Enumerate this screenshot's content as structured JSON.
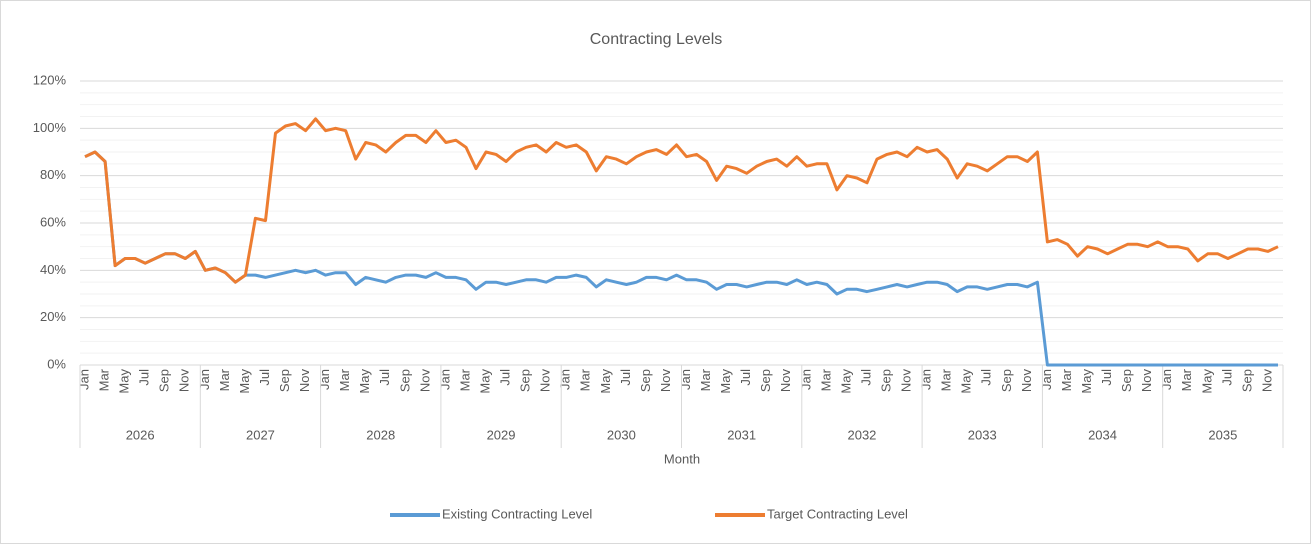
{
  "chart_data": {
    "type": "line",
    "title": "Contracting Levels",
    "x_label": "Month",
    "categories": [
      "Jan",
      null,
      "Mar",
      null,
      "May",
      null,
      "Jul",
      null,
      "Sep",
      null,
      "Nov",
      null,
      "Jan",
      null,
      "Mar",
      null,
      "May",
      null,
      "Jul",
      null,
      "Sep",
      null,
      "Nov",
      null,
      "Jan",
      null,
      "Mar",
      null,
      "May",
      null,
      "Jul",
      null,
      "Sep",
      null,
      "Nov",
      null,
      "Jan",
      null,
      "Mar",
      null,
      "May",
      null,
      "Jul",
      null,
      "Sep",
      null,
      "Nov",
      null,
      "Jan",
      null,
      "Mar",
      null,
      "May",
      null,
      "Jul",
      null,
      "Sep",
      null,
      "Nov",
      null,
      "Jan",
      null,
      "Mar",
      null,
      "May",
      null,
      "Jul",
      null,
      "Sep",
      null,
      "Nov",
      null,
      "Jan",
      null,
      "Mar",
      null,
      "May",
      null,
      "Jul",
      null,
      "Sep",
      null,
      "Nov",
      null,
      "Jan",
      null,
      "Mar",
      null,
      "May",
      null,
      "Jul",
      null,
      "Sep",
      null,
      "Nov",
      null,
      "Jan",
      null,
      "Mar",
      null,
      "May",
      null,
      "Jul",
      null,
      "Sep",
      null,
      "Nov",
      null,
      "Jan",
      null,
      "Mar",
      null,
      "May",
      null,
      "Jul",
      null,
      "Sep",
      null,
      "Nov",
      null
    ],
    "years": [
      "2026",
      "2027",
      "2028",
      "2029",
      "2030",
      "2031",
      "2032",
      "2033",
      "2034",
      "2035"
    ],
    "series": [
      {
        "name": "Existing Contracting Level",
        "color": "#5b9bd5",
        "values": [
          88,
          90,
          86,
          42,
          45,
          45,
          43,
          45,
          47,
          47,
          45,
          48,
          40,
          41,
          39,
          35,
          38,
          38,
          37,
          38,
          39,
          40,
          39,
          40,
          38,
          39,
          39,
          34,
          37,
          36,
          35,
          37,
          38,
          38,
          37,
          39,
          37,
          37,
          36,
          32,
          35,
          35,
          34,
          35,
          36,
          36,
          35,
          37,
          37,
          38,
          37,
          33,
          36,
          35,
          34,
          35,
          37,
          37,
          36,
          38,
          36,
          36,
          35,
          32,
          34,
          34,
          33,
          34,
          35,
          35,
          34,
          36,
          34,
          35,
          34,
          30,
          32,
          32,
          31,
          32,
          33,
          34,
          33,
          34,
          35,
          35,
          34,
          31,
          33,
          33,
          32,
          33,
          34,
          34,
          33,
          35,
          0,
          0,
          0,
          0,
          0,
          0,
          0,
          0,
          0,
          0,
          0,
          0,
          0,
          0,
          0,
          0,
          0,
          0,
          0,
          0,
          0,
          0,
          0,
          0
        ]
      },
      {
        "name": "Target Contracting Level",
        "color": "#ed7d31",
        "values": [
          88,
          90,
          86,
          42,
          45,
          45,
          43,
          45,
          47,
          47,
          45,
          48,
          40,
          41,
          39,
          35,
          38,
          62,
          61,
          98,
          101,
          102,
          99,
          104,
          99,
          100,
          99,
          87,
          94,
          93,
          90,
          94,
          97,
          97,
          94,
          99,
          94,
          95,
          92,
          83,
          90,
          89,
          86,
          90,
          92,
          93,
          90,
          94,
          92,
          93,
          90,
          82,
          88,
          87,
          85,
          88,
          90,
          91,
          89,
          93,
          88,
          89,
          86,
          78,
          84,
          83,
          81,
          84,
          86,
          87,
          84,
          88,
          84,
          85,
          85,
          74,
          80,
          79,
          77,
          87,
          89,
          90,
          88,
          92,
          90,
          91,
          87,
          79,
          85,
          84,
          82,
          85,
          88,
          88,
          86,
          90,
          52,
          53,
          51,
          46,
          50,
          49,
          47,
          49,
          51,
          51,
          50,
          52,
          50,
          50,
          49,
          44,
          47,
          47,
          45,
          47,
          49,
          49,
          48,
          50
        ]
      }
    ],
    "ylim": [
      0,
      120
    ],
    "yticks": [
      {
        "value": 0,
        "label": "0%"
      },
      {
        "value": 20,
        "label": "20%"
      },
      {
        "value": 40,
        "label": "40%"
      },
      {
        "value": 60,
        "label": "60%"
      },
      {
        "value": 80,
        "label": "80%"
      },
      {
        "value": 100,
        "label": "100%"
      },
      {
        "value": 120,
        "label": "120%"
      }
    ],
    "minor_yticks": [
      5,
      10,
      15,
      25,
      30,
      35,
      45,
      50,
      55,
      65,
      70,
      75,
      85,
      90,
      95,
      105,
      110,
      115
    ],
    "grid": true,
    "legend": "bottom"
  }
}
